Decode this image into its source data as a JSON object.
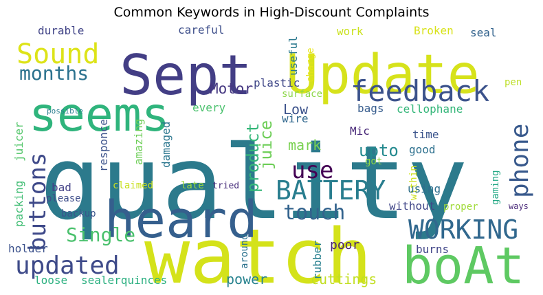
{
  "chart_data": {
    "type": "wordcloud",
    "title": "Common Keywords in High-Discount Complaints",
    "words": [
      {
        "text": "quality",
        "color": "#2c7a8c"
      },
      {
        "text": "watch",
        "color": "#d4e21a"
      },
      {
        "text": "Sept",
        "color": "#433e85"
      },
      {
        "text": "Update",
        "color": "#d6e21b"
      },
      {
        "text": "seems",
        "color": "#2fb47c"
      },
      {
        "text": "heard",
        "color": "#355f8d"
      },
      {
        "text": "boAt",
        "color": "#5ec962"
      },
      {
        "text": "feedback",
        "color": "#3b528b"
      },
      {
        "text": "BATTERY",
        "color": "#287d8e"
      },
      {
        "text": "WORKING",
        "color": "#31688e"
      },
      {
        "text": "updated",
        "color": "#3e4a89"
      },
      {
        "text": "Sound",
        "color": "#dde318"
      },
      {
        "text": "months",
        "color": "#2c728e"
      },
      {
        "text": "buttons",
        "color": "#3e4989"
      },
      {
        "text": "phone",
        "color": "#38598c"
      },
      {
        "text": "touch",
        "color": "#33638d"
      },
      {
        "text": "Single",
        "color": "#4ac16d"
      },
      {
        "text": "use",
        "color": "#440154"
      },
      {
        "text": "product",
        "color": "#35b779"
      },
      {
        "text": "juice",
        "color": "#6ece58"
      },
      {
        "text": "upto",
        "color": "#23898e"
      },
      {
        "text": "Motor",
        "color": "#453781"
      },
      {
        "text": "Low",
        "color": "#3b528b"
      },
      {
        "text": "mark",
        "color": "#7ad151"
      },
      {
        "text": "power",
        "color": "#26828e"
      },
      {
        "text": "cuttings",
        "color": "#c2df23"
      },
      {
        "text": "poor",
        "color": "#482475"
      },
      {
        "text": "packing",
        "color": "#3fbc73"
      },
      {
        "text": "juicer",
        "color": "#52c569"
      },
      {
        "text": "durable",
        "color": "#414487"
      },
      {
        "text": "careful",
        "color": "#3d4e8a"
      },
      {
        "text": "work",
        "color": "#cae11f"
      },
      {
        "text": "Broken",
        "color": "#d8e219"
      },
      {
        "text": "seal",
        "color": "#33638d"
      },
      {
        "text": "useful",
        "color": "#2a788e"
      },
      {
        "text": "charge",
        "color": "#e5e419"
      },
      {
        "text": "plastic",
        "color": "#3f4788"
      },
      {
        "text": "surface",
        "color": "#8bd646"
      },
      {
        "text": "pen",
        "color": "#bddf26"
      },
      {
        "text": "cellophane",
        "color": "#34b679"
      },
      {
        "text": "bags",
        "color": "#365c8d"
      },
      {
        "text": "every",
        "color": "#4ac16d"
      },
      {
        "text": "wire",
        "color": "#31688e"
      },
      {
        "text": "Mic",
        "color": "#482878"
      },
      {
        "text": "time",
        "color": "#3a538b"
      },
      {
        "text": "good",
        "color": "#2d708e"
      },
      {
        "text": "got",
        "color": "#8fd744"
      },
      {
        "text": "within",
        "color": "#cde11d"
      },
      {
        "text": "gaming",
        "color": "#22a884"
      },
      {
        "text": "responce",
        "color": "#3b528b"
      },
      {
        "text": "amazing",
        "color": "#6ece58"
      },
      {
        "text": "damaged",
        "color": "#2a768e"
      },
      {
        "text": "claimed",
        "color": "#c8e020"
      },
      {
        "text": "late",
        "color": "#9bd93c"
      },
      {
        "text": "tried",
        "color": "#472d7b"
      },
      {
        "text": "bad",
        "color": "#424086"
      },
      {
        "text": "please",
        "color": "#3d4d8a"
      },
      {
        "text": "backup",
        "color": "#3a548c"
      },
      {
        "text": "using",
        "color": "#2e6e8e"
      },
      {
        "text": "without",
        "color": "#404688"
      },
      {
        "text": "proper",
        "color": "#a0da39"
      },
      {
        "text": "ways",
        "color": "#482878"
      },
      {
        "text": "holder",
        "color": "#3b518b"
      },
      {
        "text": "around",
        "color": "#2c728e"
      },
      {
        "text": "rubber",
        "color": "#277f8e"
      },
      {
        "text": "burns",
        "color": "#404588"
      },
      {
        "text": "loose",
        "color": "#2ab07f"
      },
      {
        "text": "sealerquinces",
        "color": "#29af7f"
      },
      {
        "text": "possible",
        "color": "#287c8e"
      }
    ]
  }
}
